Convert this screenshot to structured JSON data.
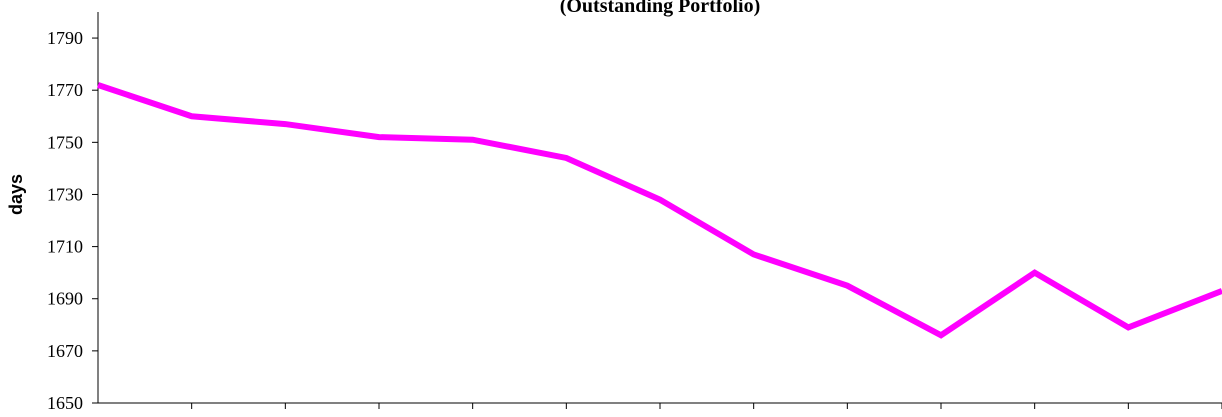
{
  "chart_data": {
    "type": "line",
    "title": "(Outstanding Portfolio)",
    "xlabel": "",
    "ylabel": "days",
    "ylim": [
      1650,
      1800
    ],
    "yticks": [
      1650,
      1670,
      1690,
      1710,
      1730,
      1750,
      1770,
      1790
    ],
    "grid": false,
    "line_color": "#FF00FF",
    "series": [
      {
        "values": [
          1772,
          1760,
          1757,
          1752,
          1751,
          1744,
          1728,
          1707,
          1695,
          1676,
          1700,
          1679,
          1693
        ]
      }
    ]
  }
}
